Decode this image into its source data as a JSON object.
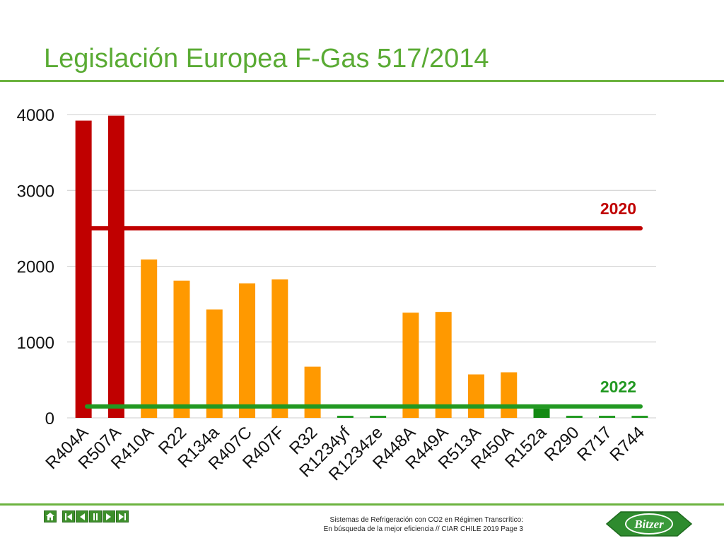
{
  "slide": {
    "title": "Legislación Europea F-Gas 517/2014"
  },
  "footer": {
    "line1": "Sistemas de Refrigeración con CO2 en Régimen Transcrítico:",
    "line2": "En búsqueda de la mejor eficiencia //  CIAR CHILE 2019  Page 3"
  },
  "logo": {
    "text": "Bitzer"
  },
  "nav": {
    "icons": [
      "home-icon",
      "first-slide-icon",
      "previous-slide-icon",
      "pause-icon",
      "next-slide-icon",
      "last-slide-icon"
    ]
  },
  "colors": {
    "title": "#5aab34",
    "red": "#c00000",
    "orange": "#ff9900",
    "green": "#229922",
    "dark_green": "#138a13",
    "grid": "#cccccc"
  },
  "chart_data": {
    "type": "bar",
    "title": "",
    "xlabel": "",
    "ylabel": "",
    "ylim": [
      0,
      4000
    ],
    "yticks": [
      0,
      1000,
      2000,
      3000,
      4000
    ],
    "grid": true,
    "categories": [
      "R404A",
      "R507A",
      "R410A",
      "R22",
      "R134a",
      "R407C",
      "R407F",
      "R32",
      "R1234yf",
      "R1234ze",
      "R448A",
      "R449A",
      "R513A",
      "R450A",
      "R152a",
      "R290",
      "R717",
      "R744"
    ],
    "values": [
      3920,
      3985,
      2088,
      1810,
      1430,
      1774,
      1825,
      675,
      4,
      7,
      1387,
      1397,
      573,
      601,
      124,
      3,
      0,
      1
    ],
    "bar_colors": [
      "red",
      "red",
      "orange",
      "orange",
      "orange",
      "orange",
      "orange",
      "orange",
      "green",
      "green",
      "orange",
      "orange",
      "orange",
      "orange",
      "green",
      "green",
      "green",
      "green"
    ],
    "reference_lines": [
      {
        "label": "2020",
        "value": 2500,
        "color": "red"
      },
      {
        "label": "2022",
        "value": 150,
        "color": "green"
      }
    ]
  }
}
